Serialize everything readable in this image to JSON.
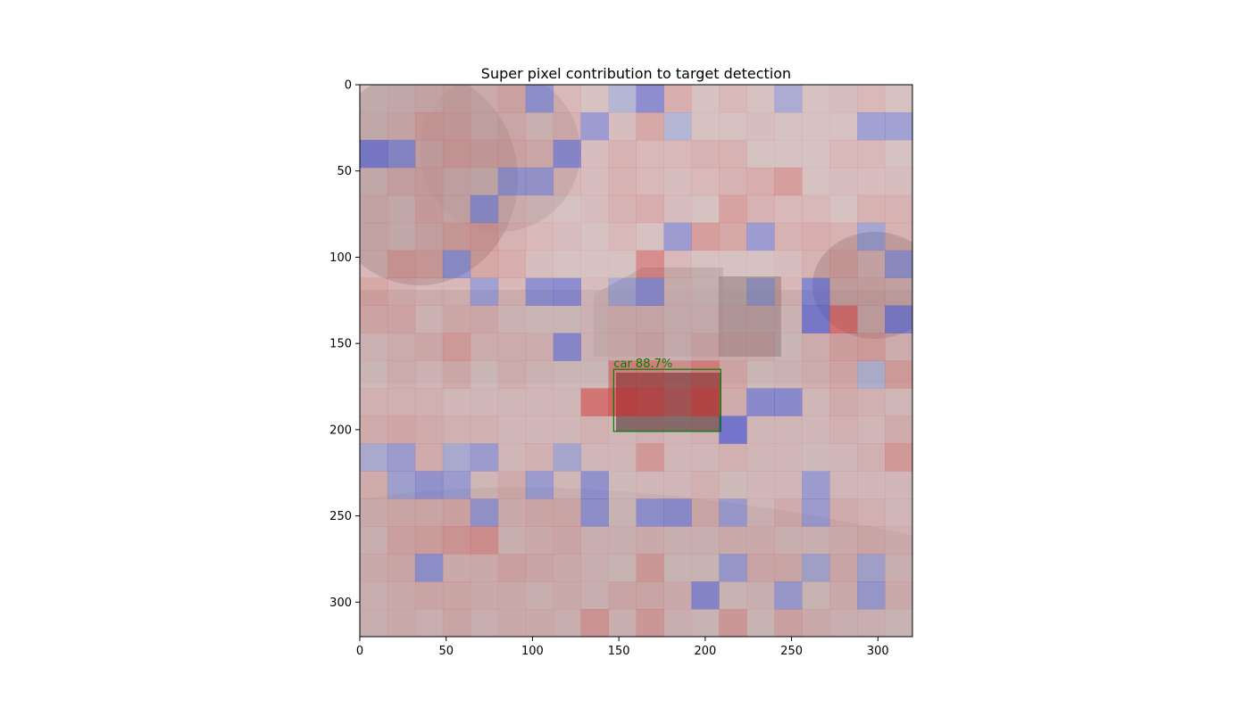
{
  "chart_data": {
    "type": "heatmap",
    "title": "Super pixel contribution to target detection",
    "xlabel": "",
    "ylabel": "",
    "xlim": [
      0,
      320
    ],
    "ylim": [
      320,
      0
    ],
    "x_ticks": [
      0,
      50,
      100,
      150,
      200,
      250,
      300
    ],
    "y_ticks": [
      0,
      50,
      100,
      150,
      200,
      250,
      300
    ],
    "x_tick_labels": [
      "0",
      "50",
      "100",
      "150",
      "200",
      "250",
      "300"
    ],
    "y_tick_labels": [
      "0",
      "50",
      "100",
      "150",
      "200",
      "250",
      "300"
    ],
    "grid": false,
    "superpixel_size": 16,
    "grid_rows": 20,
    "grid_cols": 20,
    "colormap": "bwr",
    "positive_color": "#d62728",
    "negative_color": "#3232c8",
    "background": "grayscale street scene (trees, houses, snowy road)",
    "contributions": [
      [
        0.0,
        0.05,
        0.1,
        0.15,
        0.1,
        0.2,
        -0.45,
        0.1,
        0.0,
        -0.15,
        -0.55,
        0.2,
        0.0,
        0.1,
        0.0,
        -0.25,
        0.0,
        0.05,
        0.1,
        0.0
      ],
      [
        0.05,
        0.1,
        0.25,
        0.2,
        0.1,
        0.15,
        0.05,
        0.15,
        -0.4,
        0.05,
        0.25,
        -0.15,
        0.0,
        0.0,
        0.05,
        0.0,
        0.0,
        0.0,
        -0.35,
        -0.35
      ],
      [
        -0.65,
        -0.5,
        0.15,
        0.25,
        0.2,
        0.2,
        0.15,
        -0.55,
        0.05,
        0.15,
        0.1,
        0.1,
        0.15,
        0.15,
        0.0,
        0.0,
        0.0,
        0.1,
        0.1,
        0.0
      ],
      [
        0.05,
        0.15,
        0.2,
        0.1,
        0.05,
        -0.4,
        -0.4,
        0.1,
        0.05,
        0.15,
        0.1,
        0.05,
        0.1,
        0.15,
        0.2,
        0.35,
        0.0,
        0.05,
        0.05,
        0.05
      ],
      [
        0.1,
        0.05,
        0.2,
        0.1,
        -0.45,
        0.1,
        0.05,
        0.0,
        0.05,
        0.15,
        0.2,
        0.05,
        0.0,
        0.3,
        0.15,
        0.1,
        0.1,
        0.0,
        0.15,
        0.15
      ],
      [
        0.1,
        0.05,
        0.15,
        0.25,
        0.3,
        0.15,
        0.1,
        0.05,
        0.0,
        0.1,
        0.0,
        -0.4,
        0.35,
        0.25,
        -0.4,
        0.15,
        0.2,
        0.15,
        -0.3,
        0.15
      ],
      [
        0.1,
        0.3,
        0.25,
        -0.45,
        0.25,
        0.2,
        0.05,
        0.0,
        0.0,
        0.0,
        0.5,
        0.1,
        0.0,
        0.0,
        0.0,
        0.05,
        0.15,
        0.25,
        0.1,
        -0.4
      ],
      [
        0.25,
        0.15,
        0.1,
        0.1,
        -0.35,
        0.1,
        -0.5,
        -0.55,
        0.05,
        -0.25,
        -0.5,
        0.05,
        0.0,
        0.0,
        -0.25,
        0.1,
        -0.6,
        0.15,
        0.15,
        0.1
      ],
      [
        0.2,
        0.2,
        0.05,
        0.15,
        0.15,
        0.05,
        0.0,
        0.0,
        0.05,
        0.1,
        0.1,
        0.05,
        0.05,
        0.05,
        0.05,
        0.05,
        -0.7,
        0.7,
        0.1,
        -0.6
      ],
      [
        0.05,
        0.1,
        0.15,
        0.3,
        0.1,
        0.1,
        0.1,
        -0.55,
        0.05,
        0.1,
        0.15,
        0.05,
        0.15,
        0.1,
        0.1,
        0.0,
        0.1,
        0.25,
        0.3,
        0.1
      ],
      [
        0.0,
        0.1,
        0.05,
        0.15,
        0.0,
        0.1,
        0.05,
        0.0,
        0.0,
        0.6,
        0.6,
        0.4,
        0.6,
        0.2,
        0.0,
        0.05,
        0.1,
        0.2,
        -0.15,
        0.3
      ],
      [
        0.1,
        0.1,
        0.1,
        0.05,
        0.05,
        0.05,
        0.05,
        0.05,
        0.7,
        0.9,
        0.8,
        0.55,
        0.85,
        0.15,
        -0.55,
        -0.55,
        0.05,
        0.15,
        0.1,
        0.05
      ],
      [
        0.15,
        0.2,
        0.15,
        0.1,
        0.1,
        0.05,
        0.05,
        0.05,
        0.1,
        0.05,
        0.1,
        0.05,
        0.1,
        -0.75,
        0.05,
        0.05,
        0.05,
        0.1,
        0.05,
        0.15
      ],
      [
        -0.2,
        -0.35,
        0.15,
        -0.2,
        -0.35,
        0.05,
        0.1,
        -0.25,
        0.05,
        0.05,
        0.35,
        0.05,
        0.05,
        0.1,
        0.05,
        0.05,
        0.0,
        0.05,
        0.1,
        0.35
      ],
      [
        0.15,
        -0.3,
        -0.45,
        -0.35,
        0.05,
        0.15,
        -0.35,
        0.05,
        -0.45,
        0.0,
        0.05,
        0.05,
        0.1,
        0.0,
        0.05,
        0.05,
        -0.35,
        0.05,
        0.05,
        0.05
      ],
      [
        0.1,
        0.15,
        0.15,
        0.2,
        -0.4,
        0.1,
        0.15,
        0.15,
        -0.45,
        0.0,
        -0.45,
        -0.5,
        0.15,
        -0.35,
        0.05,
        0.15,
        -0.35,
        0.15,
        0.1,
        0.05
      ],
      [
        0.05,
        0.2,
        0.25,
        0.35,
        0.4,
        0.05,
        0.1,
        0.15,
        0.05,
        0.05,
        0.1,
        0.05,
        0.05,
        0.1,
        0.1,
        0.05,
        0.05,
        0.1,
        0.15,
        0.1
      ],
      [
        0.1,
        0.15,
        -0.45,
        0.1,
        0.1,
        0.2,
        0.15,
        0.1,
        0.05,
        0.0,
        0.3,
        0.0,
        0.0,
        -0.35,
        0.15,
        0.15,
        -0.25,
        0.15,
        -0.25,
        0.05
      ],
      [
        0.05,
        0.1,
        0.15,
        0.15,
        0.1,
        0.1,
        0.05,
        0.1,
        0.05,
        0.15,
        0.15,
        0.1,
        -0.55,
        0.0,
        0.05,
        -0.35,
        0.0,
        0.1,
        -0.35,
        0.1
      ],
      [
        0.05,
        0.1,
        0.05,
        0.15,
        0.05,
        0.1,
        0.1,
        0.05,
        0.35,
        0.05,
        0.3,
        0.05,
        0.0,
        0.3,
        0.0,
        0.2,
        0.1,
        0.05,
        0.05,
        0.0
      ]
    ],
    "annotations": [
      {
        "text": "car 88.7%",
        "bbox_data": {
          "x1": 147,
          "y1": 165,
          "x2": 209,
          "y2": 201
        },
        "color": "#008000"
      }
    ]
  }
}
